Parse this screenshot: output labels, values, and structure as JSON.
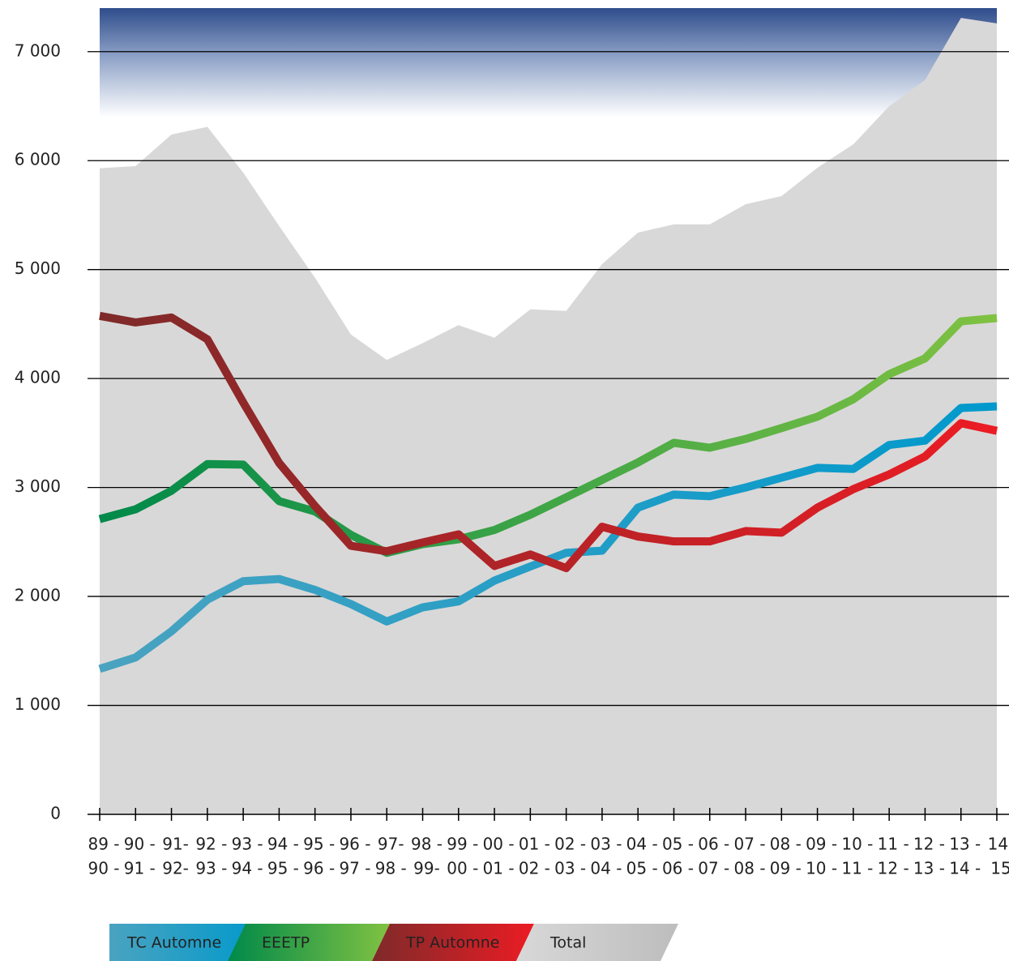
{
  "chart_data": {
    "type": "line",
    "categories": [
      [
        "89 -",
        "90 -"
      ],
      [
        "90 -",
        "91 -"
      ],
      [
        "91-",
        "92-"
      ],
      [
        "92 -",
        "93 -"
      ],
      [
        "93 -",
        "94 -"
      ],
      [
        "94 -",
        "95 -"
      ],
      [
        "95 -",
        "96 -"
      ],
      [
        "96 -",
        "97 -"
      ],
      [
        "97-",
        "98 -"
      ],
      [
        "98 -",
        "99-"
      ],
      [
        "99 -",
        "00 -"
      ],
      [
        "00 -",
        "01 -"
      ],
      [
        "01 -",
        "02 -"
      ],
      [
        "02 -",
        "03 -"
      ],
      [
        "03 -",
        "04 -"
      ],
      [
        "04 -",
        "05 -"
      ],
      [
        "05 -",
        "06 -"
      ],
      [
        "06 -",
        "07 -"
      ],
      [
        "07 -",
        "08 -"
      ],
      [
        "08 -",
        "09 -"
      ],
      [
        "09 -",
        "10 -"
      ],
      [
        "10 -",
        "11 -"
      ],
      [
        "11 -",
        "12 -"
      ],
      [
        "12 -",
        "13 -"
      ],
      [
        "13 -",
        "14 -"
      ],
      [
        "14-",
        "15"
      ]
    ],
    "series": [
      {
        "name": "TC Automne",
        "colors": [
          "#4aa3c0",
          "#0099cc"
        ],
        "values": [
          1335,
          1440,
          1680,
          1970,
          2140,
          2160,
          2060,
          1930,
          1770,
          1900,
          1955,
          2145,
          2275,
          2400,
          2420,
          2815,
          2935,
          2920,
          3000,
          3090,
          3180,
          3170,
          3390,
          3430,
          3730,
          3745
        ]
      },
      {
        "name": "EEETP",
        "colors": [
          "#00894a",
          "#80c242"
        ],
        "values": [
          2710,
          2800,
          2970,
          3215,
          3210,
          2875,
          2780,
          2565,
          2400,
          2480,
          2525,
          2610,
          2750,
          2910,
          3070,
          3230,
          3410,
          3365,
          3445,
          3545,
          3650,
          3810,
          4040,
          4185,
          4525,
          4555
        ]
      },
      {
        "name": "TP Automne",
        "colors": [
          "#7e2a2a",
          "#ec1c24"
        ],
        "values": [
          4575,
          4515,
          4560,
          4360,
          3780,
          3225,
          2830,
          2465,
          2415,
          2495,
          2570,
          2280,
          2385,
          2260,
          2640,
          2550,
          2505,
          2505,
          2600,
          2585,
          2815,
          2985,
          3120,
          3285,
          3590,
          3520
        ]
      },
      {
        "name": "Total",
        "area": true,
        "colors": [
          "#d9d8d8",
          "#bdbdbd"
        ],
        "values": [
          5930,
          5950,
          6240,
          6310,
          5890,
          5400,
          4925,
          4405,
          4170,
          4325,
          4490,
          4375,
          4635,
          4620,
          5050,
          5340,
          5415,
          5415,
          5600,
          5675,
          5935,
          6150,
          6500,
          6740,
          7310,
          7260
        ]
      }
    ],
    "ylim": [
      0,
      7400
    ],
    "yticks": [
      0,
      {
        "value": 1000,
        "label": "1 000"
      },
      {
        "value": 2000,
        "label": "2 000"
      },
      {
        "value": 3000,
        "label": "3 000"
      },
      {
        "value": 4000,
        "label": "4 000"
      },
      {
        "value": 5000,
        "label": "5 000"
      },
      {
        "value": 6000,
        "label": "6 000"
      },
      {
        "value": 7000,
        "label": "7 000"
      }
    ],
    "grid": true
  }
}
